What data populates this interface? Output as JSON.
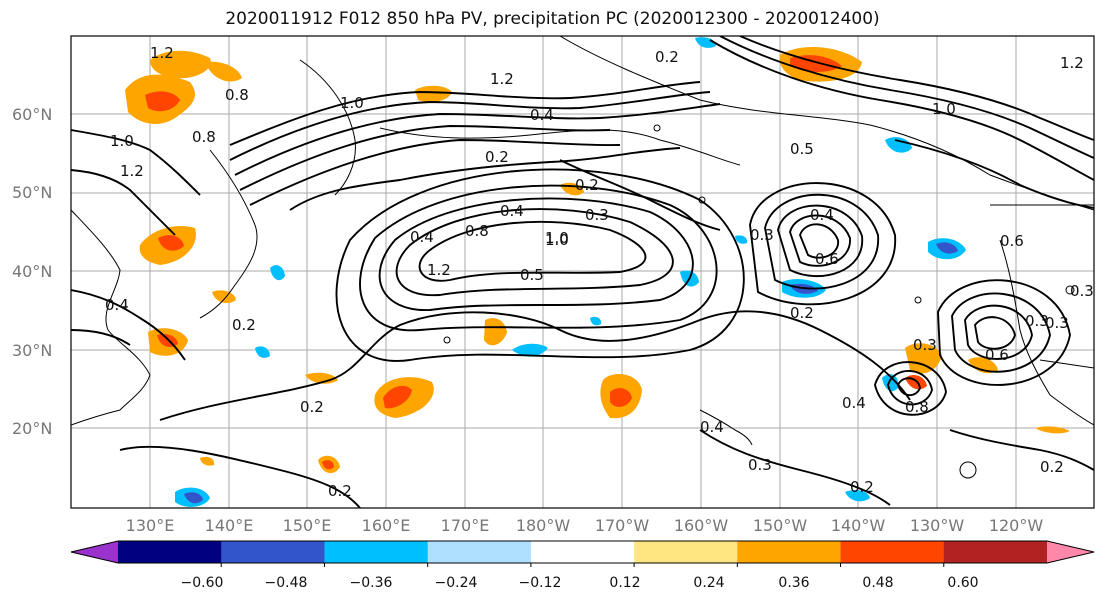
{
  "title": "2020011912 F012 850 hPa PV, precipitation PC (2020012300 - 2020012400)",
  "map": {
    "lat_labels": [
      "60°N",
      "50°N",
      "40°N",
      "30°N",
      "20°N"
    ],
    "lon_labels": [
      "130°E",
      "140°E",
      "150°E",
      "160°E",
      "170°E",
      "180°W",
      "170°W",
      "160°W",
      "150°W",
      "140°W",
      "130°W",
      "120°W"
    ],
    "grid": true,
    "contour_labels": [
      "1.2",
      "0.8",
      "1.0",
      "1.2",
      "1.0",
      "1.2",
      "0.8",
      "0.4",
      "0.4",
      "0.2",
      "0.2",
      "0.4",
      "1.0",
      "1.2",
      "1.0",
      "0.5",
      "0.4",
      "0.3",
      "0.4",
      "0.8",
      "1.0",
      "1.2",
      "0.6",
      "0.5",
      "0.2",
      "0.2",
      "0.3",
      "0.4",
      "0.8",
      "0.6",
      "0.2",
      "0.3",
      "0.3",
      "0.4",
      "0.3",
      "0.6",
      "0.3",
      "0.2",
      "0.2",
      "0.3",
      "0.2",
      "0.2"
    ]
  },
  "colorbar": {
    "ticks": [
      "−0.60",
      "−0.48",
      "−0.36",
      "−0.24",
      "−0.12",
      "0.12",
      "0.24",
      "0.36",
      "0.48",
      "0.60"
    ],
    "colors": [
      "#9933cc",
      "#000080",
      "#3355cc",
      "#00bfff",
      "#b0e0ff",
      "#ffffff",
      "#ffe680",
      "#ffa500",
      "#ff4500",
      "#b22222",
      "#ff88aa"
    ]
  }
}
